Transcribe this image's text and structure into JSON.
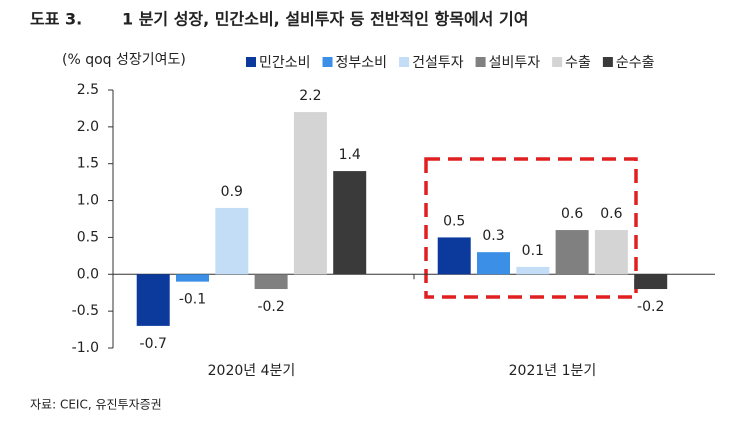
{
  "chart_data": {
    "type": "bar",
    "label": "도표 3.",
    "title": "1 분기 성장, 민간소비, 설비투자 등 전반적인 항목에서 기여",
    "y_label": "(% qoq 성장기여도)",
    "source": "자료: CEIC, 유진투자증권",
    "categories": [
      "2020년 4분기",
      "2021년 1분기"
    ],
    "series": [
      {
        "name": "민간소비",
        "color": "#0b3a9c",
        "values": [
          -0.7,
          0.5
        ]
      },
      {
        "name": "정부소비",
        "color": "#3b8fe6",
        "values": [
          -0.1,
          0.3
        ]
      },
      {
        "name": "건설투자",
        "color": "#c4ddf7",
        "values": [
          0.9,
          0.1
        ]
      },
      {
        "name": "설비투자",
        "color": "#808080",
        "values": [
          -0.2,
          0.6
        ]
      },
      {
        "name": "수출",
        "color": "#d4d4d4",
        "values": [
          2.2,
          0.6
        ]
      },
      {
        "name": "순수출",
        "color": "#3a3a3a",
        "values": [
          1.4,
          -0.2
        ]
      }
    ],
    "ylim": [
      -1.0,
      2.5
    ],
    "yticks": [
      2.5,
      {
        "value": 2.0,
        "label": "2.0"
      },
      1.5,
      {
        "value": 1.0,
        "label": "1.0"
      },
      0.5,
      {
        "value": 0.0,
        "label": "0.0"
      },
      -0.5,
      {
        "value": -1.0,
        "label": "-1.0"
      }
    ],
    "legend": "top-right"
  }
}
